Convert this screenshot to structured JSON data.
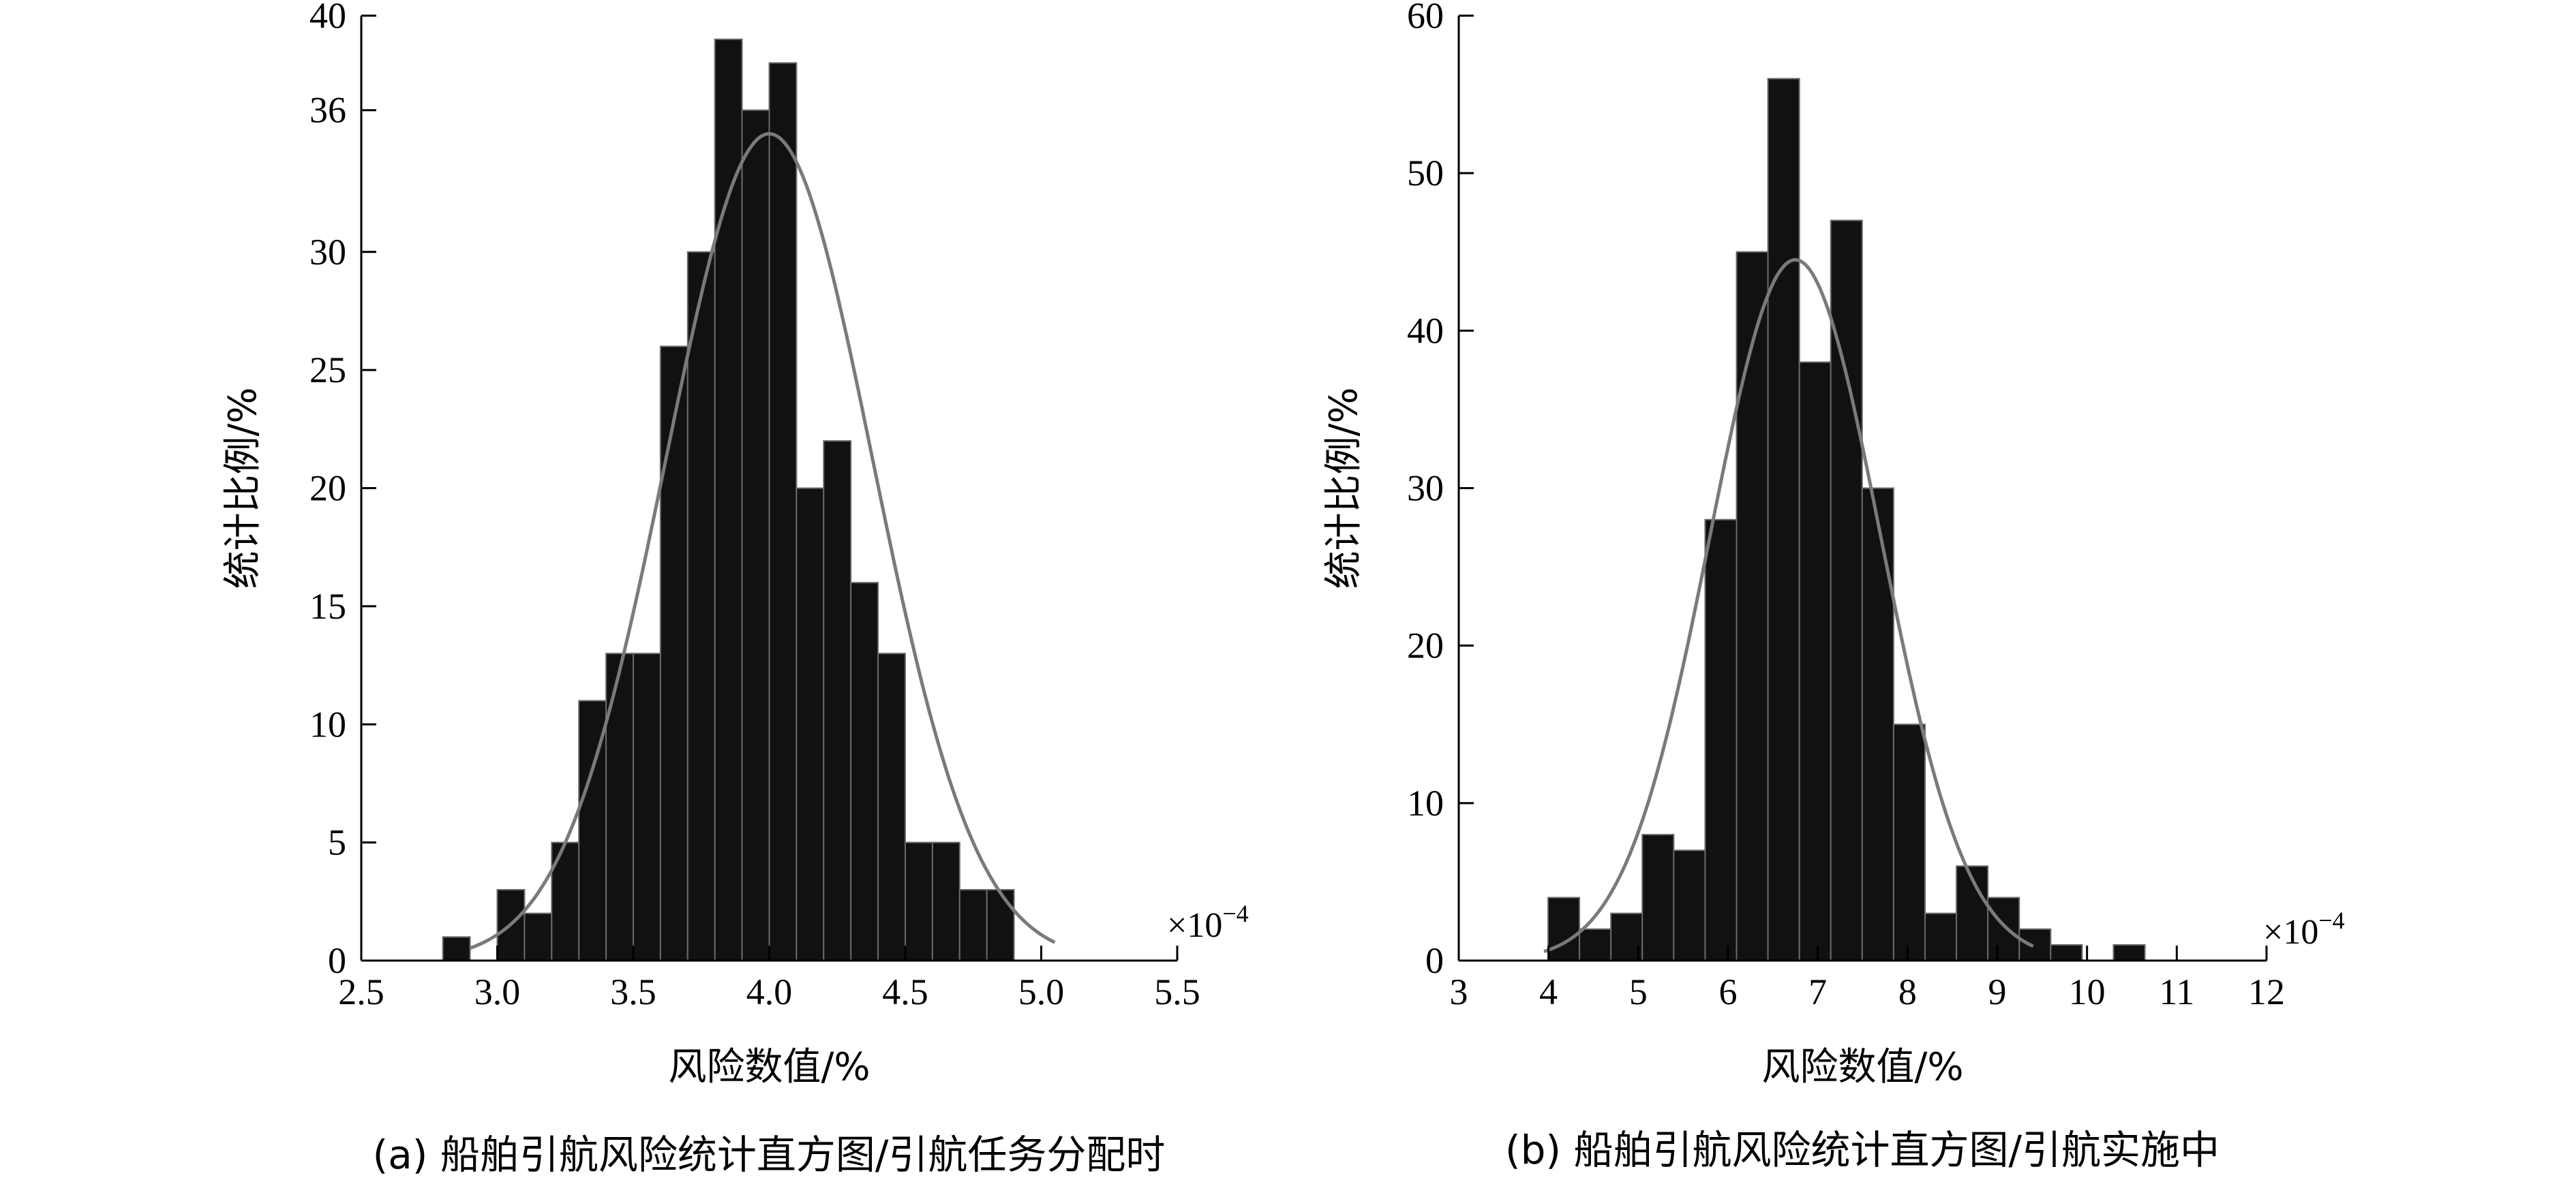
{
  "chart_data": [
    {
      "type": "bar",
      "caption": "(a) 船舶引航风险统计直方图/引航任务分配时",
      "xlabel": "风险数值/%",
      "ylabel": "统计比例/%",
      "x_multiplier": "×10",
      "x_multiplier_exp": "−4",
      "xlim": [
        2.5,
        5.5
      ],
      "ylim": [
        0,
        40
      ],
      "x_ticks": [
        "2.5",
        "3.0",
        "3.5",
        "4.0",
        "4.5",
        "5.0",
        "5.5"
      ],
      "y_ticks": [
        "0",
        "5",
        "10",
        "15",
        "20",
        "25",
        "30",
        "36",
        "40"
      ],
      "bin_width": 0.1,
      "bin_centers": [
        2.85,
        3.05,
        3.15,
        3.25,
        3.35,
        3.45,
        3.55,
        3.65,
        3.75,
        3.85,
        3.95,
        4.05,
        4.15,
        4.25,
        4.35,
        4.45,
        4.55,
        4.65,
        4.75,
        4.85
      ],
      "values": [
        1,
        3,
        2,
        5,
        11,
        13,
        13,
        26,
        30,
        39,
        36,
        38,
        20,
        22,
        16,
        13,
        5,
        5,
        3,
        3
      ],
      "fit": {
        "type": "normal",
        "mean": 4.0,
        "std": 0.38,
        "peak": 35,
        "x_range": [
          2.9,
          5.05
        ]
      }
    },
    {
      "type": "bar",
      "caption": "(b) 船舶引航风险统计直方图/引航实施中",
      "xlabel": "风险数值/%",
      "ylabel": "统计比例/%",
      "x_multiplier": "×10",
      "x_multiplier_exp": "−4",
      "xlim": [
        3,
        12
      ],
      "ylim": [
        0,
        60
      ],
      "x_ticks": [
        "3",
        "4",
        "5",
        "6",
        "7",
        "8",
        "9",
        "10",
        "11",
        "12"
      ],
      "y_ticks": [
        "0",
        "10",
        "20",
        "30",
        "40",
        "50",
        "60"
      ],
      "bin_width": 0.35,
      "bin_centers": [
        4.17,
        4.52,
        4.87,
        5.22,
        5.57,
        5.92,
        6.27,
        6.62,
        6.97,
        7.32,
        7.67,
        8.02,
        8.37,
        8.72,
        9.07,
        9.42,
        9.77,
        10.47
      ],
      "values": [
        4,
        2,
        3,
        8,
        7,
        28,
        45,
        56,
        38,
        47,
        30,
        15,
        3,
        6,
        4,
        2,
        1,
        1
      ],
      "fit": {
        "type": "normal",
        "mean": 6.75,
        "std": 0.95,
        "peak": 44.5,
        "x_range": [
          3.95,
          9.4
        ]
      }
    }
  ]
}
